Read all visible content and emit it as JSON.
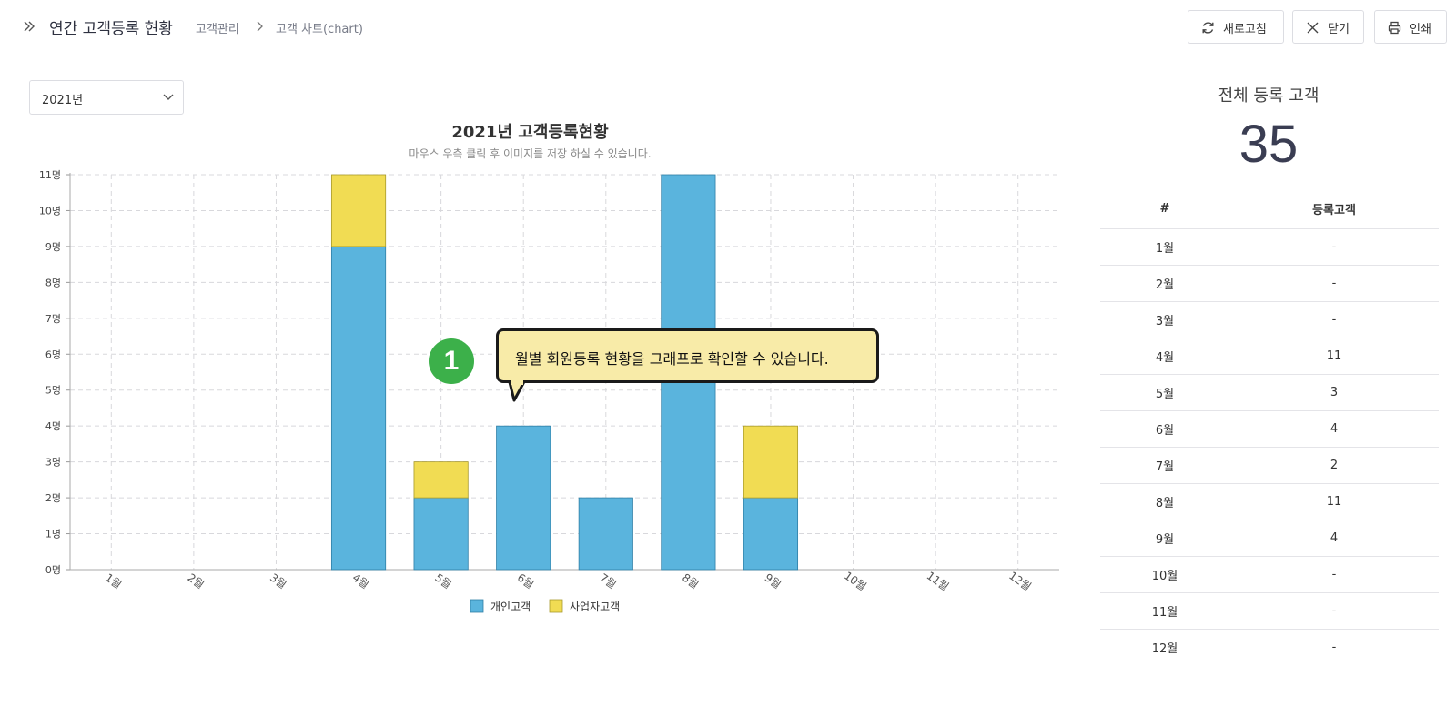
{
  "header": {
    "title": "연간 고객등록 현황",
    "breadcrumb": [
      "고객관리",
      "고객 차트(chart)"
    ],
    "buttons": {
      "refresh": "새로고침",
      "close": "닫기",
      "print": "인쇄"
    }
  },
  "year_select": {
    "value": "2021년"
  },
  "callout": {
    "number": "1",
    "text": "월별 회원등록 현황을 그래프로 확인할 수 있습니다."
  },
  "summary": {
    "label": "전체 등록 고객",
    "value": "35",
    "table": {
      "headers": [
        "#",
        "등록고객"
      ],
      "rows": [
        [
          "1월",
          "-"
        ],
        [
          "2월",
          "-"
        ],
        [
          "3월",
          "-"
        ],
        [
          "4월",
          "11"
        ],
        [
          "5월",
          "3"
        ],
        [
          "6월",
          "4"
        ],
        [
          "7월",
          "2"
        ],
        [
          "8월",
          "11"
        ],
        [
          "9월",
          "4"
        ],
        [
          "10월",
          "-"
        ],
        [
          "11월",
          "-"
        ],
        [
          "12월",
          "-"
        ]
      ]
    }
  },
  "colors": {
    "personal": "#5ab4dd",
    "business": "#f1dc53",
    "accent_green": "#3cb04a",
    "callout_bg": "#f8eba8"
  },
  "chart_data": {
    "type": "bar",
    "stacked": true,
    "title": "2021년 고객등록현황",
    "subtitle": "마우스 우측 클릭 후 이미지를 저장 하실 수 있습니다.",
    "categories": [
      "1월",
      "2월",
      "3월",
      "4월",
      "5월",
      "6월",
      "7월",
      "8월",
      "9월",
      "10월",
      "11월",
      "12월"
    ],
    "series": [
      {
        "name": "개인고객",
        "color": "#5ab4dd",
        "values": [
          0,
          0,
          0,
          9,
          2,
          4,
          2,
          11,
          2,
          0,
          0,
          0
        ]
      },
      {
        "name": "사업자고객",
        "color": "#f1dc53",
        "values": [
          0,
          0,
          0,
          2,
          1,
          0,
          0,
          0,
          2,
          0,
          0,
          0
        ]
      }
    ],
    "y_ticks": [
      "0명",
      "1명",
      "2명",
      "3명",
      "4명",
      "5명",
      "6명",
      "7명",
      "8명",
      "9명",
      "10명",
      "11명"
    ],
    "ylim": [
      0,
      11
    ],
    "grid": true,
    "legend": "bottom"
  }
}
